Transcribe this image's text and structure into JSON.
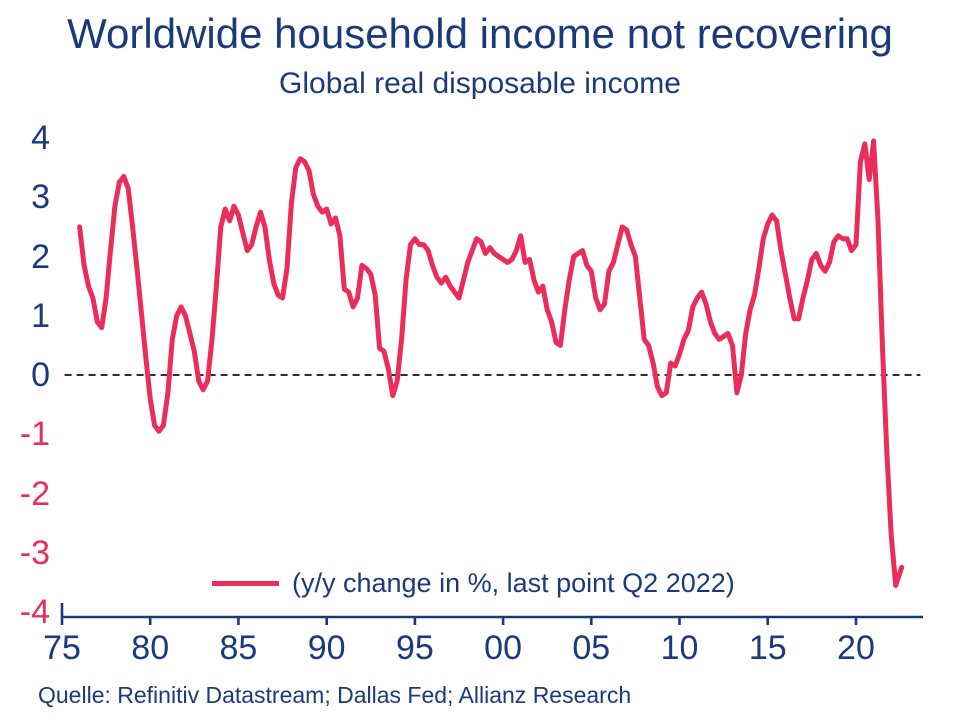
{
  "title": "Worldwide household income not recovering",
  "subtitle": "Global real disposable income",
  "legend": {
    "label": "(y/y change in %, last point Q2 2022)"
  },
  "source": "Quelle: Refinitiv Datastream; Dallas Fed; Allianz Research",
  "colors": {
    "navy": "#1A3A7C",
    "pink": "#EB2D5C",
    "zero_line": "#111111",
    "background": "#FFFFFF"
  },
  "chart_data": {
    "type": "line",
    "title": "Global real disposable income",
    "xlabel": "",
    "ylabel": "y/y change in %",
    "xlim": [
      1975,
      2023.8
    ],
    "ylim": [
      -4,
      4
    ],
    "grid": false,
    "zero_line_dashed": true,
    "legend_position": "bottom-center-inside",
    "arrowhead_at_end": true,
    "y_ticks": [
      4,
      3,
      2,
      1,
      0,
      -1,
      -2,
      -3,
      -4
    ],
    "x_ticks": [
      {
        "year": 1975,
        "label": "75"
      },
      {
        "year": 1980,
        "label": "80"
      },
      {
        "year": 1985,
        "label": "85"
      },
      {
        "year": 1990,
        "label": "90"
      },
      {
        "year": 1995,
        "label": "95"
      },
      {
        "year": 2000,
        "label": "00"
      },
      {
        "year": 2005,
        "label": "05"
      },
      {
        "year": 2010,
        "label": "10"
      },
      {
        "year": 2015,
        "label": "15"
      },
      {
        "year": 2020,
        "label": "20"
      }
    ],
    "series": [
      {
        "name": "(y/y change in %, last point Q2 2022)",
        "points": [
          [
            1976.0,
            2.5
          ],
          [
            1976.25,
            1.85
          ],
          [
            1976.5,
            1.5
          ],
          [
            1976.75,
            1.3
          ],
          [
            1977.0,
            0.9
          ],
          [
            1977.25,
            0.8
          ],
          [
            1977.5,
            1.3
          ],
          [
            1977.75,
            2.1
          ],
          [
            1978.0,
            2.85
          ],
          [
            1978.25,
            3.25
          ],
          [
            1978.5,
            3.35
          ],
          [
            1978.75,
            3.15
          ],
          [
            1979.0,
            2.5
          ],
          [
            1979.25,
            1.8
          ],
          [
            1979.5,
            1.05
          ],
          [
            1979.75,
            0.3
          ],
          [
            1980.0,
            -0.4
          ],
          [
            1980.25,
            -0.85
          ],
          [
            1980.5,
            -0.95
          ],
          [
            1980.75,
            -0.85
          ],
          [
            1981.0,
            -0.3
          ],
          [
            1981.25,
            0.6
          ],
          [
            1981.5,
            1.0
          ],
          [
            1981.75,
            1.15
          ],
          [
            1982.0,
            1.0
          ],
          [
            1982.25,
            0.7
          ],
          [
            1982.5,
            0.4
          ],
          [
            1982.75,
            -0.1
          ],
          [
            1983.0,
            -0.25
          ],
          [
            1983.25,
            -0.1
          ],
          [
            1983.5,
            0.6
          ],
          [
            1983.75,
            1.5
          ],
          [
            1984.0,
            2.5
          ],
          [
            1984.25,
            2.8
          ],
          [
            1984.5,
            2.6
          ],
          [
            1984.75,
            2.85
          ],
          [
            1985.0,
            2.7
          ],
          [
            1985.25,
            2.4
          ],
          [
            1985.5,
            2.1
          ],
          [
            1985.75,
            2.2
          ],
          [
            1986.0,
            2.5
          ],
          [
            1986.25,
            2.75
          ],
          [
            1986.5,
            2.5
          ],
          [
            1986.75,
            1.95
          ],
          [
            1987.0,
            1.55
          ],
          [
            1987.25,
            1.35
          ],
          [
            1987.5,
            1.3
          ],
          [
            1987.75,
            1.8
          ],
          [
            1988.0,
            2.9
          ],
          [
            1988.25,
            3.5
          ],
          [
            1988.5,
            3.65
          ],
          [
            1988.75,
            3.6
          ],
          [
            1989.0,
            3.45
          ],
          [
            1989.25,
            3.05
          ],
          [
            1989.5,
            2.85
          ],
          [
            1989.75,
            2.75
          ],
          [
            1990.0,
            2.8
          ],
          [
            1990.25,
            2.55
          ],
          [
            1990.5,
            2.65
          ],
          [
            1990.75,
            2.35
          ],
          [
            1991.0,
            1.45
          ],
          [
            1991.25,
            1.4
          ],
          [
            1991.5,
            1.15
          ],
          [
            1991.75,
            1.3
          ],
          [
            1992.0,
            1.85
          ],
          [
            1992.25,
            1.8
          ],
          [
            1992.5,
            1.7
          ],
          [
            1992.75,
            1.35
          ],
          [
            1993.0,
            0.45
          ],
          [
            1993.25,
            0.4
          ],
          [
            1993.5,
            0.1
          ],
          [
            1993.75,
            -0.35
          ],
          [
            1994.0,
            -0.1
          ],
          [
            1994.25,
            0.6
          ],
          [
            1994.5,
            1.6
          ],
          [
            1994.75,
            2.2
          ],
          [
            1995.0,
            2.3
          ],
          [
            1995.25,
            2.2
          ],
          [
            1995.5,
            2.2
          ],
          [
            1995.75,
            2.1
          ],
          [
            1996.0,
            1.85
          ],
          [
            1996.25,
            1.65
          ],
          [
            1996.5,
            1.55
          ],
          [
            1996.75,
            1.65
          ],
          [
            1997.0,
            1.5
          ],
          [
            1997.25,
            1.4
          ],
          [
            1997.5,
            1.3
          ],
          [
            1997.75,
            1.6
          ],
          [
            1998.0,
            1.9
          ],
          [
            1998.25,
            2.1
          ],
          [
            1998.5,
            2.3
          ],
          [
            1998.75,
            2.25
          ],
          [
            1999.0,
            2.05
          ],
          [
            1999.25,
            2.15
          ],
          [
            1999.5,
            2.05
          ],
          [
            1999.75,
            2.0
          ],
          [
            2000.0,
            1.95
          ],
          [
            2000.25,
            1.9
          ],
          [
            2000.5,
            1.95
          ],
          [
            2000.75,
            2.1
          ],
          [
            2001.0,
            2.35
          ],
          [
            2001.25,
            1.9
          ],
          [
            2001.5,
            1.95
          ],
          [
            2001.75,
            1.6
          ],
          [
            2002.0,
            1.4
          ],
          [
            2002.25,
            1.5
          ],
          [
            2002.5,
            1.1
          ],
          [
            2002.75,
            0.9
          ],
          [
            2003.0,
            0.55
          ],
          [
            2003.25,
            0.5
          ],
          [
            2003.5,
            1.1
          ],
          [
            2003.75,
            1.6
          ],
          [
            2004.0,
            2.0
          ],
          [
            2004.25,
            2.05
          ],
          [
            2004.5,
            2.1
          ],
          [
            2004.75,
            1.85
          ],
          [
            2005.0,
            1.75
          ],
          [
            2005.25,
            1.3
          ],
          [
            2005.5,
            1.1
          ],
          [
            2005.75,
            1.2
          ],
          [
            2006.0,
            1.75
          ],
          [
            2006.25,
            1.9
          ],
          [
            2006.5,
            2.2
          ],
          [
            2006.75,
            2.5
          ],
          [
            2007.0,
            2.45
          ],
          [
            2007.25,
            2.2
          ],
          [
            2007.5,
            2.0
          ],
          [
            2007.75,
            1.3
          ],
          [
            2008.0,
            0.6
          ],
          [
            2008.25,
            0.5
          ],
          [
            2008.5,
            0.2
          ],
          [
            2008.75,
            -0.2
          ],
          [
            2009.0,
            -0.35
          ],
          [
            2009.25,
            -0.3
          ],
          [
            2009.5,
            0.2
          ],
          [
            2009.75,
            0.15
          ],
          [
            2010.0,
            0.35
          ],
          [
            2010.25,
            0.6
          ],
          [
            2010.5,
            0.75
          ],
          [
            2010.75,
            1.15
          ],
          [
            2011.0,
            1.3
          ],
          [
            2011.25,
            1.4
          ],
          [
            2011.5,
            1.2
          ],
          [
            2011.75,
            0.9
          ],
          [
            2012.0,
            0.7
          ],
          [
            2012.25,
            0.6
          ],
          [
            2012.5,
            0.65
          ],
          [
            2012.75,
            0.7
          ],
          [
            2013.0,
            0.5
          ],
          [
            2013.25,
            -0.3
          ],
          [
            2013.5,
            0.0
          ],
          [
            2013.75,
            0.7
          ],
          [
            2014.0,
            1.1
          ],
          [
            2014.25,
            1.35
          ],
          [
            2014.5,
            1.8
          ],
          [
            2014.75,
            2.3
          ],
          [
            2015.0,
            2.55
          ],
          [
            2015.25,
            2.7
          ],
          [
            2015.5,
            2.6
          ],
          [
            2015.75,
            2.1
          ],
          [
            2016.0,
            1.7
          ],
          [
            2016.25,
            1.3
          ],
          [
            2016.5,
            0.95
          ],
          [
            2016.75,
            0.95
          ],
          [
            2017.0,
            1.3
          ],
          [
            2017.25,
            1.6
          ],
          [
            2017.5,
            1.95
          ],
          [
            2017.75,
            2.05
          ],
          [
            2018.0,
            1.85
          ],
          [
            2018.25,
            1.75
          ],
          [
            2018.5,
            1.9
          ],
          [
            2018.75,
            2.25
          ],
          [
            2019.0,
            2.35
          ],
          [
            2019.25,
            2.3
          ],
          [
            2019.5,
            2.3
          ],
          [
            2019.75,
            2.1
          ],
          [
            2020.0,
            2.2
          ],
          [
            2020.25,
            3.6
          ],
          [
            2020.5,
            3.9
          ],
          [
            2020.75,
            3.3
          ],
          [
            2021.0,
            3.95
          ],
          [
            2021.25,
            2.6
          ],
          [
            2021.5,
            0.5
          ],
          [
            2021.75,
            -1.3
          ],
          [
            2022.0,
            -2.7
          ],
          [
            2022.25,
            -3.55
          ]
        ]
      }
    ]
  }
}
